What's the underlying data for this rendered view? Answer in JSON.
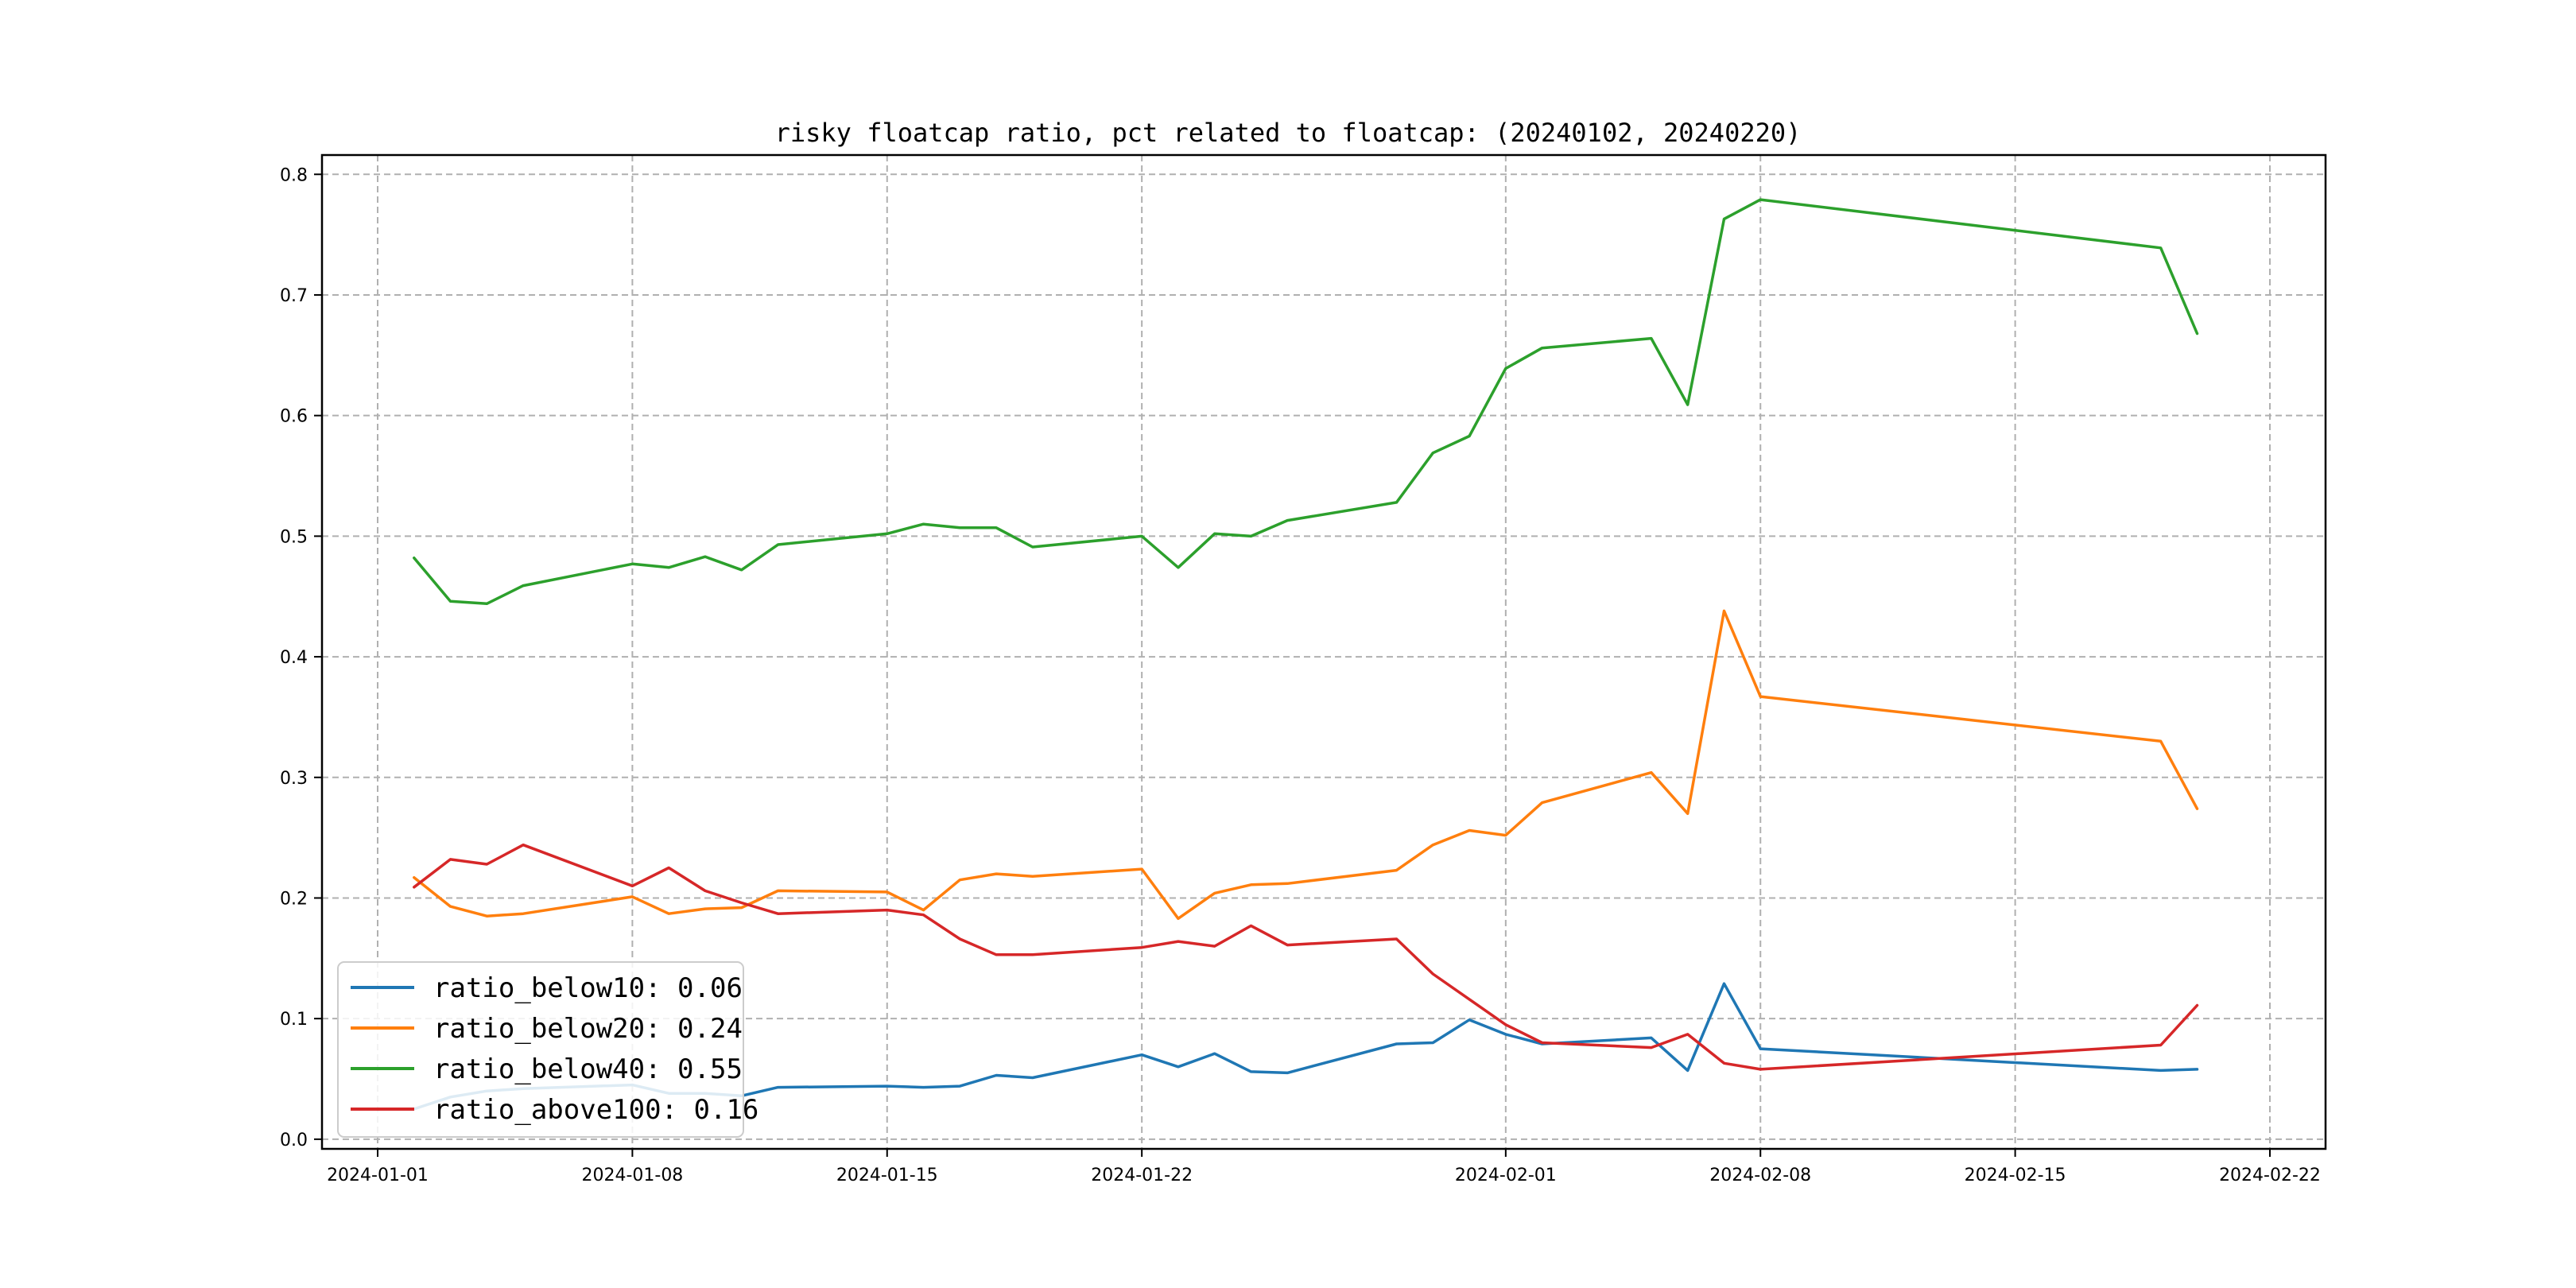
{
  "chart_data": {
    "type": "line",
    "title": "risky floatcap ratio, pct related to floatcap: (20240102, 20240220)",
    "xlabel": "",
    "ylabel": "",
    "x_type": "date",
    "xlim": [
      "2024-01-01",
      "2024-02-22"
    ],
    "ylim": [
      -0.008,
      0.816
    ],
    "x_ticks": [
      "2024-01-01",
      "2024-01-08",
      "2024-01-15",
      "2024-01-22",
      "2024-02-01",
      "2024-02-08",
      "2024-02-15",
      "2024-02-22"
    ],
    "y_ticks": [
      "0.0",
      "0.1",
      "0.2",
      "0.3",
      "0.4",
      "0.5",
      "0.6",
      "0.7",
      "0.8"
    ],
    "grid": true,
    "legend_position": "bottom-left",
    "x": [
      "2024-01-02",
      "2024-01-03",
      "2024-01-04",
      "2024-01-05",
      "2024-01-08",
      "2024-01-09",
      "2024-01-10",
      "2024-01-11",
      "2024-01-12",
      "2024-01-15",
      "2024-01-16",
      "2024-01-17",
      "2024-01-18",
      "2024-01-19",
      "2024-01-22",
      "2024-01-23",
      "2024-01-24",
      "2024-01-25",
      "2024-01-26",
      "2024-01-29",
      "2024-01-30",
      "2024-01-31",
      "2024-02-01",
      "2024-02-02",
      "2024-02-05",
      "2024-02-06",
      "2024-02-07",
      "2024-02-08",
      "2024-02-19",
      "2024-02-20"
    ],
    "series": [
      {
        "name": "ratio_below10: 0.06",
        "color": "#1f77b4",
        "values": [
          0.025,
          0.035,
          0.04,
          0.042,
          0.045,
          0.038,
          0.038,
          0.036,
          0.043,
          0.044,
          0.043,
          0.044,
          0.053,
          0.051,
          0.07,
          0.06,
          0.071,
          0.056,
          0.055,
          0.079,
          0.08,
          0.099,
          0.087,
          0.079,
          0.084,
          0.057,
          0.129,
          0.075,
          0.057,
          0.058
        ]
      },
      {
        "name": "ratio_below20: 0.24",
        "color": "#ff7f0e",
        "values": [
          0.217,
          0.193,
          0.185,
          0.187,
          0.201,
          0.187,
          0.191,
          0.192,
          0.206,
          0.205,
          0.19,
          0.215,
          0.22,
          0.218,
          0.224,
          0.183,
          0.204,
          0.211,
          0.212,
          0.223,
          0.244,
          0.256,
          0.252,
          0.279,
          0.304,
          0.27,
          0.438,
          0.367,
          0.33,
          0.274
        ]
      },
      {
        "name": "ratio_below40: 0.55",
        "color": "#2ca02c",
        "values": [
          0.482,
          0.446,
          0.444,
          0.459,
          0.477,
          0.474,
          0.483,
          0.472,
          0.493,
          0.502,
          0.51,
          0.507,
          0.507,
          0.491,
          0.5,
          0.474,
          0.502,
          0.5,
          0.513,
          0.528,
          0.569,
          0.583,
          0.639,
          0.656,
          0.664,
          0.609,
          0.763,
          0.779,
          0.739,
          0.668
        ]
      },
      {
        "name": "ratio_above100: 0.16",
        "color": "#d62728",
        "values": [
          0.209,
          0.232,
          0.228,
          0.244,
          0.21,
          0.225,
          0.206,
          0.196,
          0.187,
          0.19,
          0.186,
          0.166,
          0.153,
          0.153,
          0.159,
          0.164,
          0.16,
          0.177,
          0.161,
          0.166,
          0.137,
          0.116,
          0.095,
          0.08,
          0.076,
          0.087,
          0.063,
          0.058,
          0.078,
          0.111
        ]
      }
    ]
  }
}
